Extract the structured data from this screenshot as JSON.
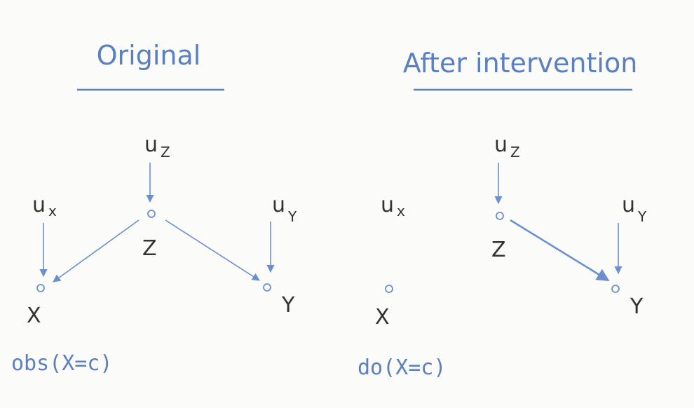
{
  "panels": [
    {
      "title": "Original",
      "caption": "obs(X=c)",
      "nodes": {
        "uz": {
          "base": "u",
          "sub": "Z"
        },
        "ux": {
          "base": "u",
          "sub": "x"
        },
        "uy": {
          "base": "u",
          "sub": "Y"
        },
        "z": "Z",
        "x": "X",
        "y": "Y"
      }
    },
    {
      "title": "After intervention",
      "caption": "do(X=c)",
      "nodes": {
        "uz": {
          "base": "u",
          "sub": "Z"
        },
        "ux": {
          "base": "u",
          "sub": "x"
        },
        "uy": {
          "base": "u",
          "sub": "Y"
        },
        "z": "Z",
        "x": "X",
        "y": "Y"
      }
    }
  ],
  "colors": {
    "ink_blue": "#5a7fc2",
    "arrow_blue": "#6b8fcf",
    "ink_dark": "#333333",
    "background": "#fbfbf9"
  }
}
